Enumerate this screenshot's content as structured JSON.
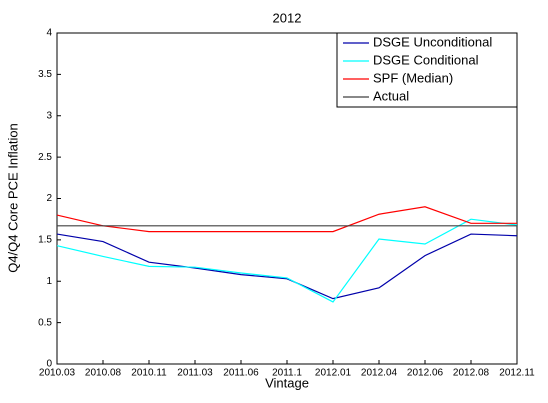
{
  "chart_data": {
    "type": "line",
    "title": "2012",
    "x_label": "Vintage",
    "y_label": "Q4/Q4 Core PCE Inflation",
    "categories": [
      "2010.03",
      "2010.08",
      "2010.11",
      "2011.03",
      "2011.06",
      "2011.1",
      "2012.01",
      "2012.04",
      "2012.06",
      "2012.08",
      "2012.11"
    ],
    "series": [
      {
        "name": "DSGE Unconditional",
        "color": "#0000aa",
        "values": [
          1.57,
          1.48,
          1.23,
          1.16,
          1.08,
          1.03,
          0.79,
          0.92,
          1.31,
          1.57,
          1.55
        ]
      },
      {
        "name": "DSGE Conditional",
        "color": "#00ffff",
        "values": [
          1.43,
          1.3,
          1.18,
          1.17,
          1.1,
          1.04,
          0.75,
          1.51,
          1.45,
          1.75,
          1.68
        ]
      },
      {
        "name": "SPF (Median)",
        "color": "#ff0000",
        "values": [
          1.8,
          1.67,
          1.6,
          1.6,
          1.6,
          1.6,
          1.6,
          1.81,
          1.9,
          1.7,
          1.7
        ]
      },
      {
        "name": "Actual",
        "color": "#404040",
        "values": [
          1.67,
          1.67,
          1.67,
          1.67,
          1.67,
          1.67,
          1.67,
          1.67,
          1.67,
          1.67,
          1.67
        ]
      }
    ],
    "ylim": [
      0,
      4
    ],
    "yticks": [
      0,
      0.5,
      1,
      1.5,
      2,
      2.5,
      3,
      3.5,
      4
    ],
    "grid": false,
    "legend": "upper right"
  }
}
